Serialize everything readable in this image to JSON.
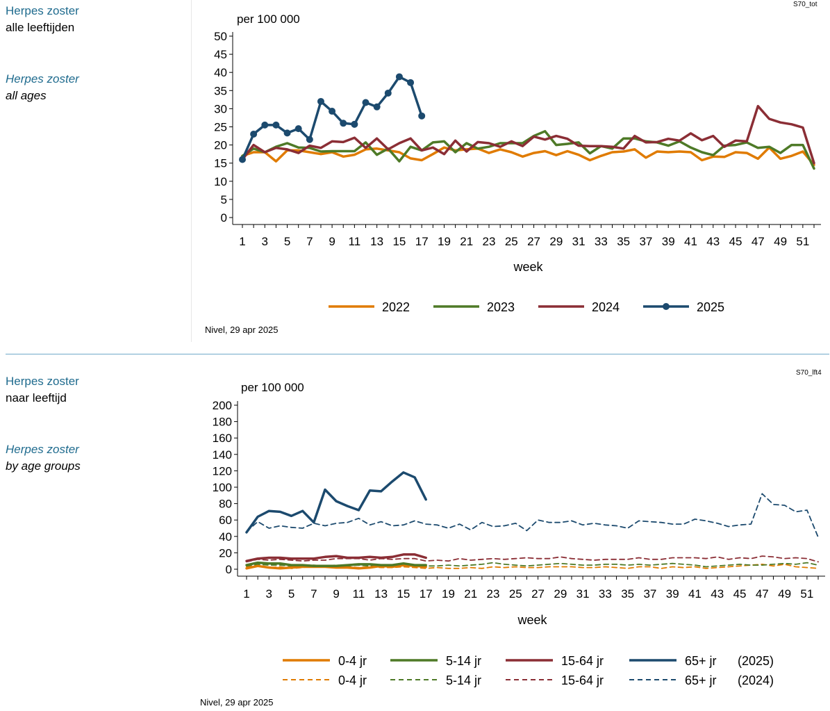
{
  "panel1": {
    "title_nl": "Herpes zoster",
    "subtitle_nl": "alle leeftijden",
    "title_en": "Herpes zoster",
    "subtitle_en": "all ages",
    "code": "S70_tot",
    "source": "Nivel, 29 apr 2025"
  },
  "panel2": {
    "title_nl": "Herpes zoster",
    "subtitle_nl": "naar leeftijd",
    "title_en": "Herpes zoster",
    "subtitle_en": "by age groups",
    "code": "S70_lft4",
    "source": "Nivel, 29 apr 2025"
  },
  "chart_data": [
    {
      "type": "line",
      "ylabel": "per 100 000",
      "xlabel": "week",
      "ylim": [
        0,
        50
      ],
      "yticks": [
        0,
        5,
        10,
        15,
        20,
        25,
        30,
        35,
        40,
        45,
        50
      ],
      "xticks": [
        1,
        3,
        5,
        7,
        9,
        11,
        13,
        15,
        17,
        19,
        21,
        23,
        25,
        27,
        29,
        31,
        33,
        35,
        37,
        39,
        41,
        43,
        45,
        47,
        49,
        51
      ],
      "xlim": [
        1,
        52
      ],
      "grid": false,
      "legend_position": "bottom",
      "series": [
        {
          "name": "2022",
          "color": "#e07b00",
          "dashed": false,
          "markers": false,
          "values": [
            17,
            18,
            18,
            15.5,
            18.5,
            18.5,
            18,
            17.5,
            18,
            16.8,
            17.3,
            18.8,
            19,
            18.5,
            18,
            16.3,
            15.8,
            17.5,
            19.3,
            18.5,
            18.8,
            19,
            17.8,
            18.8,
            18,
            16.8,
            17.8,
            18.3,
            17.2,
            18.3,
            17.3,
            15.8,
            17,
            18,
            18.2,
            18.8,
            16.5,
            18.2,
            18,
            18.2,
            18,
            15.8,
            16.8,
            16.7,
            18,
            17.8,
            16.2,
            19.3,
            16.2,
            17,
            18.2,
            14.5
          ]
        },
        {
          "name": "2023",
          "color": "#4e7a27",
          "dashed": false,
          "markers": false,
          "values": [
            17,
            19,
            18,
            19.5,
            20.5,
            19.3,
            19.2,
            18.2,
            18.3,
            18.3,
            18.3,
            20.7,
            17.3,
            19,
            15.5,
            19.5,
            18.5,
            20.7,
            21,
            18,
            20.5,
            19,
            19.5,
            20.5,
            20.5,
            20.5,
            22.5,
            23.8,
            20,
            20.3,
            20.7,
            17.7,
            19.7,
            19,
            21.8,
            21.8,
            21,
            20.7,
            19.8,
            21,
            19.3,
            18,
            17.2,
            19.8,
            20,
            20.7,
            19.2,
            19.5,
            17.8,
            20,
            20,
            13.5
          ]
        },
        {
          "name": "2024",
          "color": "#8b2e35",
          "dashed": false,
          "markers": false,
          "values": [
            16,
            20,
            18,
            19.2,
            18.8,
            17.8,
            19.8,
            19.2,
            21,
            20.8,
            22,
            19.2,
            21.8,
            18.8,
            20.5,
            21.8,
            18.5,
            19.3,
            17.5,
            21.2,
            18.2,
            20.8,
            20.5,
            19.5,
            21,
            19.7,
            22.3,
            21.5,
            22.5,
            21.7,
            19.8,
            19.7,
            19.7,
            19.5,
            19,
            22.5,
            20.7,
            20.8,
            21.7,
            21.2,
            23.2,
            21.3,
            22.5,
            19.5,
            21.2,
            21,
            30.7,
            27.2,
            26.2,
            25.7,
            24.8,
            15
          ]
        },
        {
          "name": "2025",
          "color": "#1c4a6e",
          "dashed": false,
          "markers": true,
          "values": [
            16,
            23,
            25.5,
            25.5,
            23.3,
            24.5,
            21.5,
            32,
            29.3,
            26,
            25.7,
            31.7,
            30.5,
            34.3,
            38.8,
            37.2,
            28
          ]
        }
      ],
      "legend": [
        "2022",
        "2023",
        "2024",
        "2025"
      ]
    },
    {
      "type": "line",
      "ylabel": "per 100 000",
      "xlabel": "week",
      "ylim": [
        0,
        200
      ],
      "yticks": [
        0,
        20,
        40,
        60,
        80,
        100,
        120,
        140,
        160,
        180,
        200
      ],
      "xticks": [
        1,
        3,
        5,
        7,
        9,
        11,
        13,
        15,
        17,
        19,
        21,
        23,
        25,
        27,
        29,
        31,
        33,
        35,
        37,
        39,
        41,
        43,
        45,
        47,
        49,
        51
      ],
      "xlim": [
        1,
        52
      ],
      "grid": false,
      "legend_position": "bottom",
      "series": [
        {
          "name": "0-4 jr",
          "year": "2025",
          "color": "#e07b00",
          "dashed": false,
          "values": [
            1,
            4,
            2,
            1,
            2,
            3,
            3,
            3,
            2,
            2,
            1,
            2,
            4,
            3,
            5,
            4,
            3
          ]
        },
        {
          "name": "5-14 jr",
          "year": "2025",
          "color": "#4e7a27",
          "dashed": false,
          "values": [
            5,
            8,
            7,
            7,
            5,
            5,
            4,
            4,
            4,
            5,
            6,
            6,
            5,
            5,
            7,
            5,
            5
          ]
        },
        {
          "name": "15-64 jr",
          "year": "2025",
          "color": "#8b2e35",
          "dashed": false,
          "values": [
            10,
            13,
            14,
            14,
            13,
            13,
            13,
            15,
            16,
            14,
            14,
            15,
            14,
            15,
            18,
            18,
            14
          ]
        },
        {
          "name": "65+ jr",
          "year": "2025",
          "color": "#1c4a6e",
          "dashed": false,
          "values": [
            45,
            64,
            71,
            70,
            65,
            71,
            57,
            97,
            83,
            77,
            72,
            96,
            95,
            107,
            118,
            112,
            85
          ]
        },
        {
          "name": "0-4 jr",
          "year": "2024",
          "color": "#e07b00",
          "dashed": true,
          "values": [
            3,
            5,
            2,
            3,
            1,
            2,
            4,
            3,
            2,
            3,
            2,
            3,
            2,
            2,
            3,
            2,
            1,
            2,
            1,
            1,
            2,
            1,
            3,
            2,
            3,
            2,
            2,
            3,
            3,
            3,
            2,
            2,
            3,
            2,
            1,
            3,
            3,
            1,
            3,
            2,
            3,
            1,
            2,
            3,
            4,
            5,
            6,
            4,
            6,
            3,
            2,
            1
          ]
        },
        {
          "name": "5-14 jr",
          "year": "2024",
          "color": "#4e7a27",
          "dashed": true,
          "values": [
            4,
            6,
            5,
            5,
            4,
            5,
            5,
            4,
            5,
            4,
            5,
            4,
            5,
            4,
            6,
            5,
            4,
            4,
            5,
            4,
            5,
            6,
            8,
            6,
            5,
            4,
            5,
            6,
            7,
            6,
            5,
            5,
            6,
            6,
            5,
            6,
            5,
            6,
            7,
            6,
            5,
            3,
            4,
            5,
            6,
            5,
            5,
            6,
            7,
            6,
            8,
            5
          ]
        },
        {
          "name": "15-64 jr",
          "year": "2024",
          "color": "#8b2e35",
          "dashed": true,
          "values": [
            9,
            12,
            11,
            12,
            11,
            10,
            11,
            11,
            13,
            13,
            13,
            11,
            13,
            12,
            13,
            13,
            10,
            11,
            10,
            13,
            11,
            12,
            13,
            12,
            13,
            14,
            13,
            13,
            15,
            13,
            12,
            11,
            12,
            12,
            12,
            14,
            12,
            12,
            14,
            14,
            14,
            13,
            15,
            12,
            14,
            13,
            16,
            15,
            13,
            14,
            13,
            9
          ]
        },
        {
          "name": "65+ jr",
          "year": "2024",
          "color": "#1c4a6e",
          "dashed": true,
          "values": [
            46,
            58,
            50,
            53,
            51,
            50,
            56,
            53,
            56,
            57,
            62,
            54,
            58,
            53,
            54,
            59,
            55,
            54,
            50,
            55,
            48,
            57,
            52,
            53,
            56,
            47,
            60,
            57,
            57,
            59,
            54,
            56,
            54,
            53,
            50,
            59,
            58,
            57,
            55,
            55,
            61,
            59,
            56,
            52,
            54,
            55,
            92,
            79,
            78,
            70,
            72,
            39
          ]
        }
      ],
      "legend": {
        "row_2025": {
          "labels": [
            "0-4 jr",
            "5-14 jr",
            "15-64 jr",
            "65+ jr"
          ],
          "year": "(2025)"
        },
        "row_2024": {
          "labels": [
            "0-4 jr",
            "5-14 jr",
            "15-64 jr",
            "65+ jr"
          ],
          "year": "(2024)"
        }
      }
    }
  ]
}
